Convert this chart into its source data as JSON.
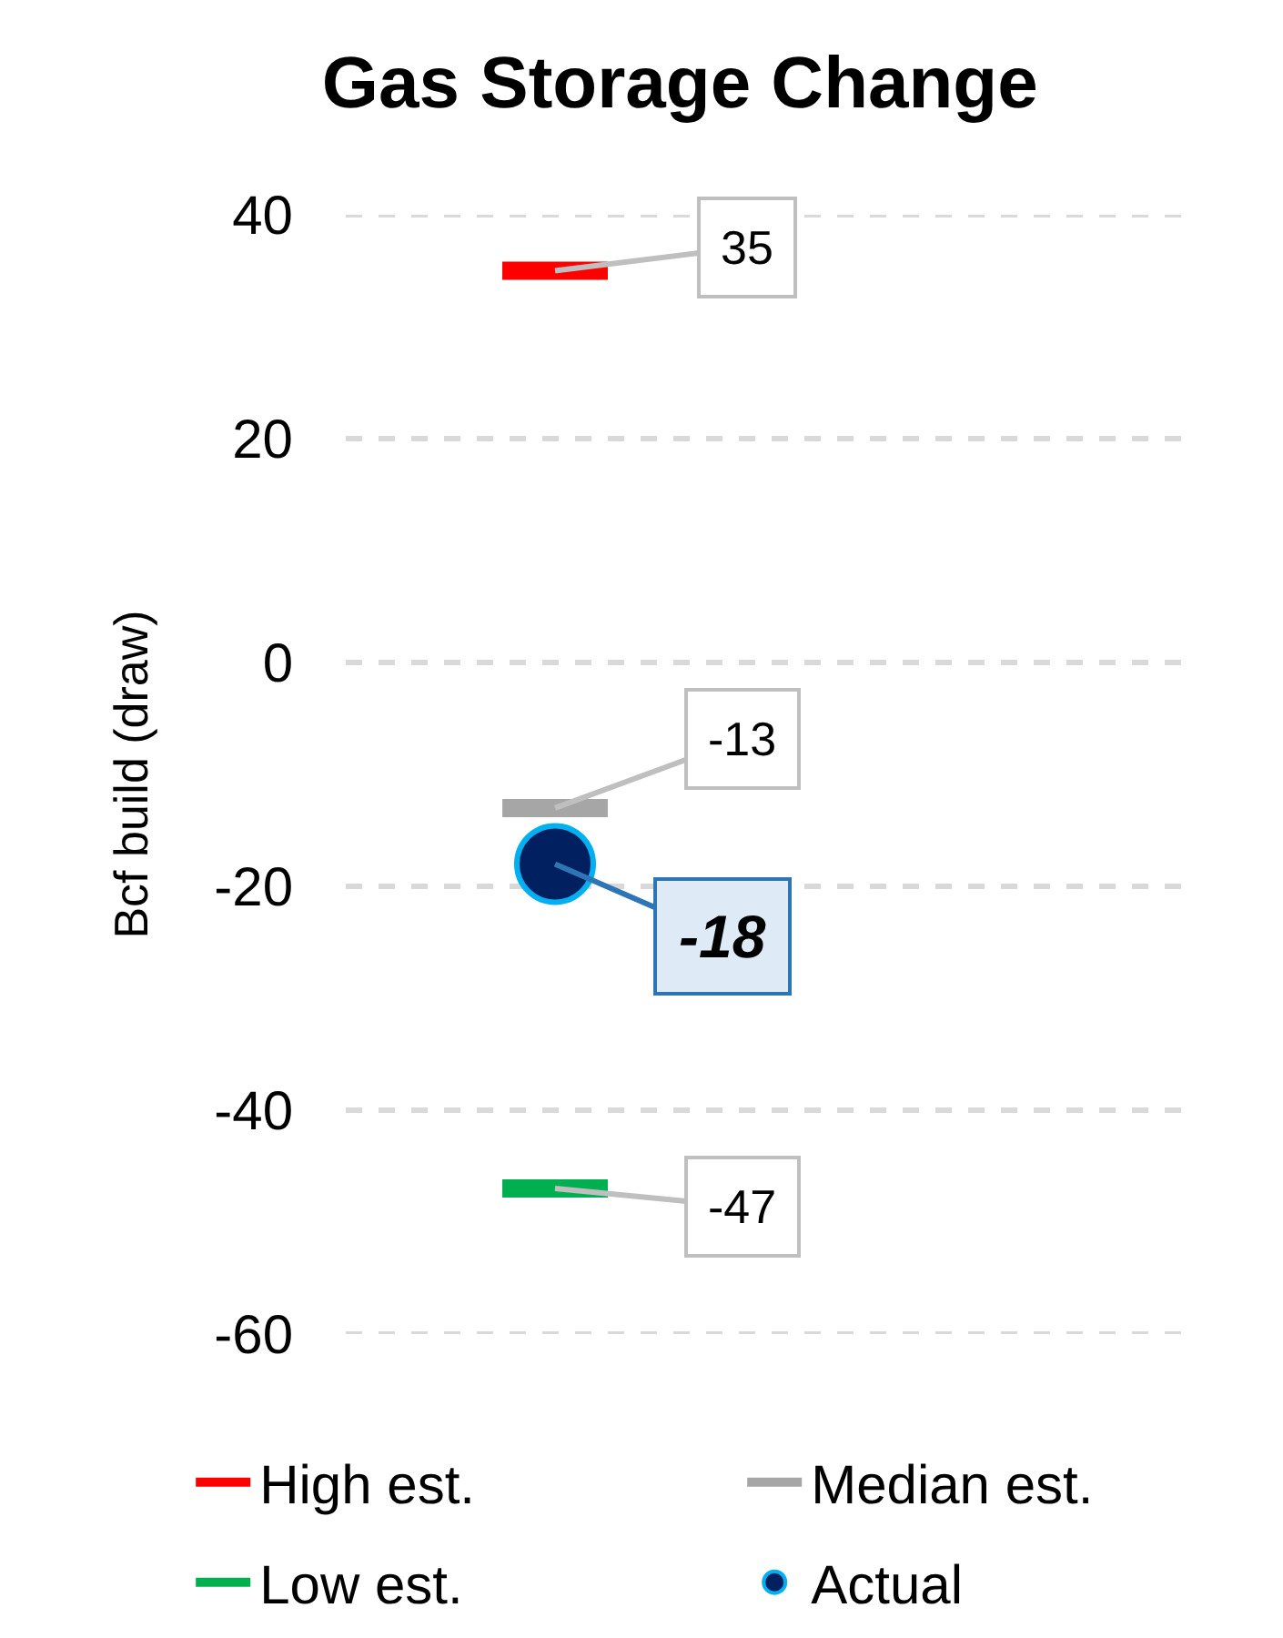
{
  "chart_data": {
    "type": "scatter",
    "title": "Gas Storage Change",
    "ylabel": "Bcf build (draw)",
    "categories": [
      null,
      null
    ],
    "series": [
      {
        "name": "Actual",
        "color": "#002060",
        "values": [
          -18,
          null
        ]
      }
    ],
    "marker": "circle",
    "ref_lines": [
      {
        "axis": "y",
        "value": 35,
        "label": "High est.",
        "color": "#ff0000"
      },
      {
        "axis": "y",
        "value": -13,
        "label": "Median est.",
        "color": "#a6a6a6"
      },
      {
        "axis": "y",
        "value": -47,
        "label": "Low est.",
        "color": "#00b050"
      }
    ],
    "annotations": [
      "35",
      "-13",
      "-47"
    ],
    "ylim": [
      -60,
      40
    ],
    "yticks": [
      -60,
      -40,
      -20,
      0,
      20,
      40
    ],
    "grid": "y",
    "legend": "bottom",
    "data_labels": true
  }
}
